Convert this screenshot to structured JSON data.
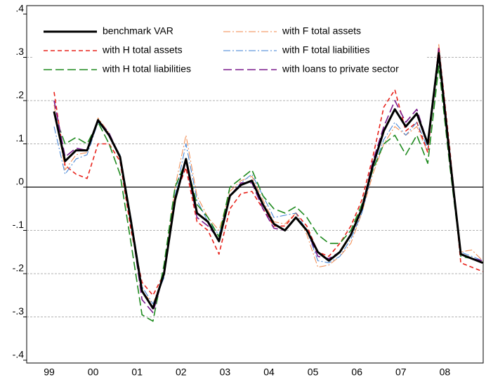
{
  "chart_data": {
    "type": "line",
    "categories": [
      "99",
      null,
      null,
      null,
      "00",
      null,
      null,
      null,
      "01",
      null,
      null,
      null,
      "02",
      null,
      null,
      null,
      "03",
      null,
      null,
      null,
      "04",
      null,
      null,
      null,
      "05",
      null,
      null,
      null,
      "06",
      null,
      null,
      null,
      "07",
      null,
      null,
      null,
      "08",
      null,
      null,
      null
    ],
    "ylim": [
      -0.4,
      0.4
    ],
    "yticks": [
      {
        "value": -0.4,
        "label": "-.4"
      },
      {
        "value": -0.3,
        "label": "-.3"
      },
      {
        "value": -0.2,
        "label": "-.2"
      },
      {
        "value": -0.1,
        "label": "-.1"
      },
      {
        "value": 0,
        "label": ".0"
      },
      {
        "value": 0.1,
        "label": ".1"
      },
      {
        "value": 0.2,
        "label": ".2"
      },
      {
        "value": 0.3,
        "label": ".3"
      },
      {
        "value": 0.4,
        "label": ".4"
      }
    ],
    "grid": true,
    "legend": "top-left",
    "series": [
      {
        "name": "benchmark VAR",
        "color": "#000000",
        "values": [
          0.175,
          0.06,
          0.085,
          0.085,
          0.155,
          0.12,
          0.07,
          -0.08,
          -0.24,
          -0.28,
          -0.2,
          -0.03,
          0.065,
          -0.06,
          -0.08,
          -0.125,
          -0.02,
          0.005,
          0.015,
          -0.04,
          -0.085,
          -0.1,
          -0.07,
          -0.1,
          -0.15,
          -0.17,
          -0.15,
          -0.11,
          -0.05,
          0.05,
          0.13,
          0.18,
          0.14,
          0.17,
          0.1,
          0.31,
          0.07,
          -0.155,
          -0.165,
          -0.175
        ]
      },
      {
        "name": "with F total assets",
        "color": "#f0874a",
        "values": [
          0.19,
          0.04,
          0.075,
          0.08,
          0.16,
          0.125,
          0.07,
          -0.07,
          -0.24,
          -0.27,
          -0.2,
          0.0,
          0.12,
          -0.02,
          -0.07,
          -0.1,
          -0.01,
          0.015,
          0.025,
          -0.03,
          -0.08,
          -0.085,
          -0.06,
          -0.11,
          -0.185,
          -0.18,
          -0.16,
          -0.13,
          -0.06,
          0.03,
          0.1,
          0.14,
          0.12,
          0.14,
          0.08,
          0.33,
          0.06,
          -0.15,
          -0.145,
          -0.17
        ]
      },
      {
        "name": "with H total assets",
        "color": "#e8231c",
        "values": [
          0.22,
          0.05,
          0.03,
          0.02,
          0.1,
          0.1,
          0.06,
          -0.1,
          -0.22,
          -0.25,
          -0.2,
          -0.02,
          0.045,
          -0.08,
          -0.1,
          -0.155,
          -0.05,
          -0.015,
          -0.01,
          -0.05,
          -0.09,
          -0.09,
          -0.06,
          -0.09,
          -0.15,
          -0.16,
          -0.13,
          -0.09,
          -0.03,
          0.07,
          0.185,
          0.225,
          0.13,
          0.15,
          0.08,
          0.325,
          0.09,
          -0.175,
          -0.185,
          -0.195
        ]
      },
      {
        "name": "with F total liabilities",
        "color": "#3b7fd4",
        "values": [
          0.14,
          0.03,
          0.065,
          0.075,
          0.15,
          0.12,
          0.075,
          -0.07,
          -0.23,
          -0.27,
          -0.21,
          -0.02,
          0.1,
          -0.03,
          -0.08,
          -0.11,
          -0.02,
          0.01,
          0.03,
          -0.02,
          -0.07,
          -0.065,
          -0.06,
          -0.1,
          -0.17,
          -0.175,
          -0.16,
          -0.12,
          -0.06,
          0.04,
          0.11,
          0.15,
          0.12,
          0.15,
          0.09,
          0.32,
          0.07,
          -0.15,
          -0.16,
          -0.17
        ]
      },
      {
        "name": "with H total liabilities",
        "color": "#1e8a1e",
        "values": [
          0.17,
          0.1,
          0.115,
          0.1,
          0.15,
          0.1,
          0.03,
          -0.13,
          -0.295,
          -0.31,
          -0.18,
          0.0,
          0.06,
          -0.04,
          -0.07,
          -0.115,
          0.0,
          0.02,
          0.04,
          -0.02,
          -0.05,
          -0.06,
          -0.045,
          -0.07,
          -0.11,
          -0.13,
          -0.13,
          -0.1,
          -0.04,
          0.04,
          0.1,
          0.12,
          0.075,
          0.12,
          0.055,
          0.28,
          0.05,
          -0.16,
          -0.165,
          -0.175
        ]
      },
      {
        "name": "with loans to private sector",
        "color": "#7a1a8c",
        "values": [
          0.2,
          0.07,
          0.09,
          0.085,
          0.155,
          0.125,
          0.07,
          -0.08,
          -0.26,
          -0.29,
          -0.2,
          -0.03,
          0.06,
          -0.07,
          -0.09,
          -0.12,
          -0.02,
          0.01,
          0.01,
          -0.05,
          -0.095,
          -0.1,
          -0.07,
          -0.1,
          -0.16,
          -0.165,
          -0.15,
          -0.11,
          -0.05,
          0.06,
          0.14,
          0.2,
          0.15,
          0.18,
          0.1,
          0.32,
          0.08,
          -0.155,
          -0.165,
          -0.17
        ]
      }
    ]
  }
}
